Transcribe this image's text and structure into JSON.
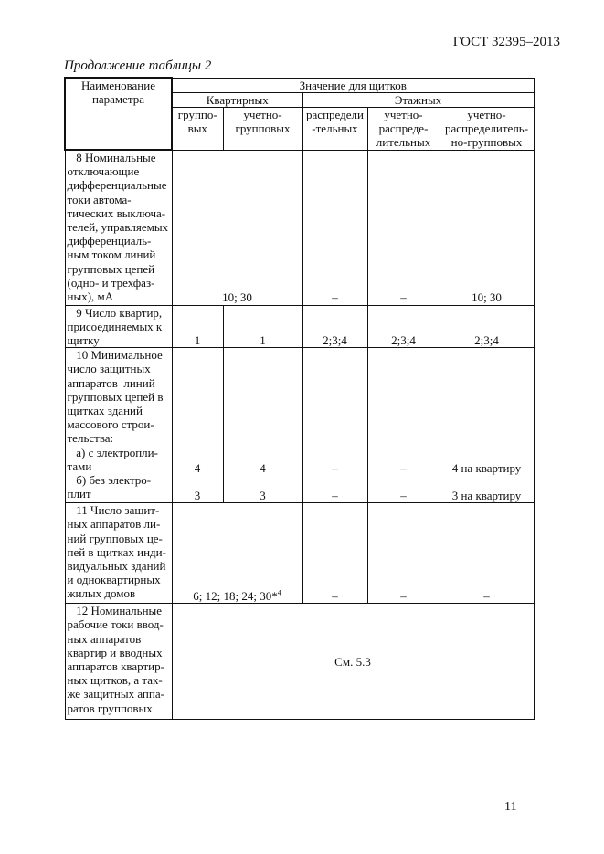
{
  "header": {
    "doc_id": "ГОСТ 32395–2013",
    "continuation": "Продолжение  таблицы 2",
    "page_number": "11"
  },
  "table": {
    "head": {
      "param": "Наименование\nпараметра",
      "values_for": "Значение для щитков",
      "apartment": "Квартирных",
      "floor": "Этажных",
      "cols": [
        "группо-\nвых",
        "учетно-\nгрупповых",
        "распредели\n-тельных",
        "учетно-\nраспреде-\nлительных",
        "учетно-\nраспределитель-\nно-групповых"
      ]
    },
    "rows": {
      "r8": {
        "param": "   8 Номинальные\nотключающие\nдифференциальные\nтоки автома-\nтических выключа-\nтелей, управляемых\nдифференциаль-\nным током линий\nгрупповых цепей\n(одно- и трехфаз-\nных), мА",
        "apartment": "10; 30",
        "distr": "–",
        "meter_distr": "–",
        "meter_distr_group": "10; 30"
      },
      "r9": {
        "param": "   9 Число квартир,\nприсоединяемых к\nщитку",
        "group": "1",
        "meter_group": "1",
        "distr": "2;3;4",
        "meter_distr": "2;3;4",
        "meter_distr_group": "2;3;4"
      },
      "r10": {
        "param": "   10 Минимальное\nчисло защитных\nаппаратов  линий\nгрупповых цепей в\nщитках зданий\nмассового строи-\nтельства:\n   а) с электропли-\nтами\n   б) без электро-\nплит",
        "group": "4\n\n3",
        "meter_group": "4\n\n3",
        "distr": "–\n\n–",
        "meter_distr": "–\n\n–",
        "meter_distr_group": "4 на квартиру\n\n3 на квартиру"
      },
      "r11": {
        "param": "   11 Число защит-\nных аппаратов ли-\nний групповых це-\nпей в щитках инди-\nвидуальных зданий\nи одноквартирных\nжилых домов",
        "apartment": "6; 12; 18; 24; 30*",
        "apartment_sup": "4",
        "distr": "–",
        "meter_distr": "–",
        "meter_distr_group": "–"
      },
      "r12": {
        "param": "   12 Номинальные\nрабочие токи ввод-\nных аппаратов\nквартир и вводных\nаппаратов квартир-\nных щитков, а так-\nже защитных аппа-\nратов групповых",
        "all": "См. 5.3"
      }
    }
  }
}
